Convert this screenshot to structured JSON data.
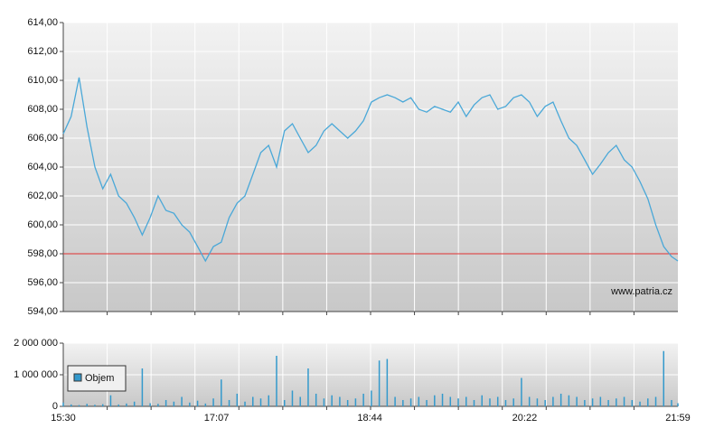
{
  "chart_data": [
    {
      "type": "line",
      "x": [
        "15:30",
        "15:35",
        "15:40",
        "15:45",
        "15:50",
        "15:55",
        "16:00",
        "16:05",
        "16:10",
        "16:15",
        "16:20",
        "16:25",
        "16:30",
        "16:35",
        "16:40",
        "16:45",
        "16:50",
        "16:55",
        "17:00",
        "17:05",
        "17:10",
        "17:15",
        "17:20",
        "17:25",
        "17:30",
        "17:35",
        "17:40",
        "17:45",
        "17:50",
        "17:55",
        "18:00",
        "18:05",
        "18:10",
        "18:15",
        "18:20",
        "18:25",
        "18:30",
        "18:35",
        "18:40",
        "18:45",
        "18:50",
        "18:55",
        "19:00",
        "19:05",
        "19:10",
        "19:15",
        "19:20",
        "19:25",
        "19:30",
        "19:35",
        "19:40",
        "19:45",
        "19:50",
        "19:55",
        "20:00",
        "20:05",
        "20:10",
        "20:15",
        "20:20",
        "20:25",
        "20:30",
        "20:35",
        "20:40",
        "20:45",
        "20:50",
        "20:55",
        "21:00",
        "21:05",
        "21:10",
        "21:15",
        "21:20",
        "21:25",
        "21:30",
        "21:35",
        "21:40",
        "21:45",
        "21:50",
        "21:55",
        "21:59"
      ],
      "values": [
        606.3,
        607.5,
        610.2,
        606.8,
        604.0,
        602.5,
        603.5,
        602.0,
        601.5,
        600.5,
        599.3,
        600.5,
        602.0,
        601.0,
        600.8,
        600.0,
        599.5,
        598.5,
        597.5,
        598.5,
        598.8,
        600.5,
        601.5,
        602.0,
        603.5,
        605.0,
        605.5,
        604.0,
        606.5,
        607.0,
        606.0,
        605.0,
        605.5,
        606.5,
        607.0,
        606.5,
        606.0,
        606.5,
        607.2,
        608.5,
        608.8,
        609.0,
        608.8,
        608.5,
        608.8,
        608.0,
        607.8,
        608.2,
        608.0,
        607.8,
        608.5,
        607.5,
        608.3,
        608.8,
        609.0,
        608.0,
        608.2,
        608.8,
        609.0,
        608.5,
        607.5,
        608.2,
        608.5,
        607.2,
        606.0,
        605.5,
        604.5,
        603.5,
        604.2,
        605.0,
        605.5,
        604.5,
        604.0,
        603.0,
        601.8,
        600.0,
        598.5,
        597.8,
        597.5
      ],
      "color": "#4aa8d8",
      "xlim": [
        "15:30",
        "21:59"
      ],
      "ylim": [
        594,
        614
      ],
      "yticks": [
        {
          "value": 594,
          "label": "594,00"
        },
        {
          "value": 596,
          "label": "596,00"
        },
        {
          "value": 598,
          "label": "598,00"
        },
        {
          "value": 600,
          "label": "600,00"
        },
        {
          "value": 602,
          "label": "602,00"
        },
        {
          "value": 604,
          "label": "604,00"
        },
        {
          "value": 606,
          "label": "606,00"
        },
        {
          "value": 608,
          "label": "608,00"
        },
        {
          "value": 610,
          "label": "610,00"
        },
        {
          "value": 612,
          "label": "612,00"
        },
        {
          "value": 614,
          "label": "614,00"
        }
      ],
      "reference_line": 598,
      "reference_color": "#e03030",
      "grid": true,
      "source": "www.patria.cz"
    },
    {
      "type": "bar",
      "x": [
        "15:30",
        "15:35",
        "15:40",
        "15:45",
        "15:50",
        "15:55",
        "16:00",
        "16:05",
        "16:10",
        "16:15",
        "16:20",
        "16:25",
        "16:30",
        "16:35",
        "16:40",
        "16:45",
        "16:50",
        "16:55",
        "17:00",
        "17:05",
        "17:10",
        "17:15",
        "17:20",
        "17:25",
        "17:30",
        "17:35",
        "17:40",
        "17:45",
        "17:50",
        "17:55",
        "18:00",
        "18:05",
        "18:10",
        "18:15",
        "18:20",
        "18:25",
        "18:30",
        "18:35",
        "18:40",
        "18:45",
        "18:50",
        "18:55",
        "19:00",
        "19:05",
        "19:10",
        "19:15",
        "19:20",
        "19:25",
        "19:30",
        "19:35",
        "19:40",
        "19:45",
        "19:50",
        "19:55",
        "20:00",
        "20:05",
        "20:10",
        "20:15",
        "20:20",
        "20:25",
        "20:30",
        "20:35",
        "20:40",
        "20:45",
        "20:50",
        "20:55",
        "21:00",
        "21:05",
        "21:10",
        "21:15",
        "21:20",
        "21:25",
        "21:30",
        "21:35",
        "21:40",
        "21:45",
        "21:50",
        "21:55",
        "21:59"
      ],
      "series": [
        {
          "name": "Objem",
          "color": "#3399cc",
          "values": [
            120000,
            60000,
            40000,
            80000,
            50000,
            70000,
            350000,
            60000,
            90000,
            150000,
            1200000,
            100000,
            80000,
            200000,
            150000,
            300000,
            120000,
            180000,
            90000,
            250000,
            850000,
            200000,
            400000,
            150000,
            300000,
            250000,
            350000,
            1600000,
            200000,
            500000,
            300000,
            1200000,
            400000,
            250000,
            350000,
            300000,
            200000,
            250000,
            400000,
            500000,
            1450000,
            1500000,
            300000,
            200000,
            250000,
            300000,
            200000,
            350000,
            400000,
            300000,
            250000,
            300000,
            200000,
            350000,
            250000,
            300000,
            200000,
            250000,
            900000,
            300000,
            250000,
            200000,
            300000,
            400000,
            350000,
            300000,
            200000,
            250000,
            300000,
            200000,
            250000,
            300000,
            200000,
            150000,
            250000,
            300000,
            1750000,
            200000,
            100000
          ]
        }
      ],
      "xlim": [
        "15:30",
        "21:59"
      ],
      "xticks": [
        "15:30",
        "17:07",
        "18:44",
        "20:22",
        "21:59"
      ],
      "ylim": [
        0,
        2000000
      ],
      "yticks": [
        0,
        {
          "value": 1000000,
          "label": "1 000 000"
        },
        {
          "value": 2000000,
          "label": "2 000 000"
        }
      ],
      "grid": true,
      "legend": "left"
    }
  ]
}
